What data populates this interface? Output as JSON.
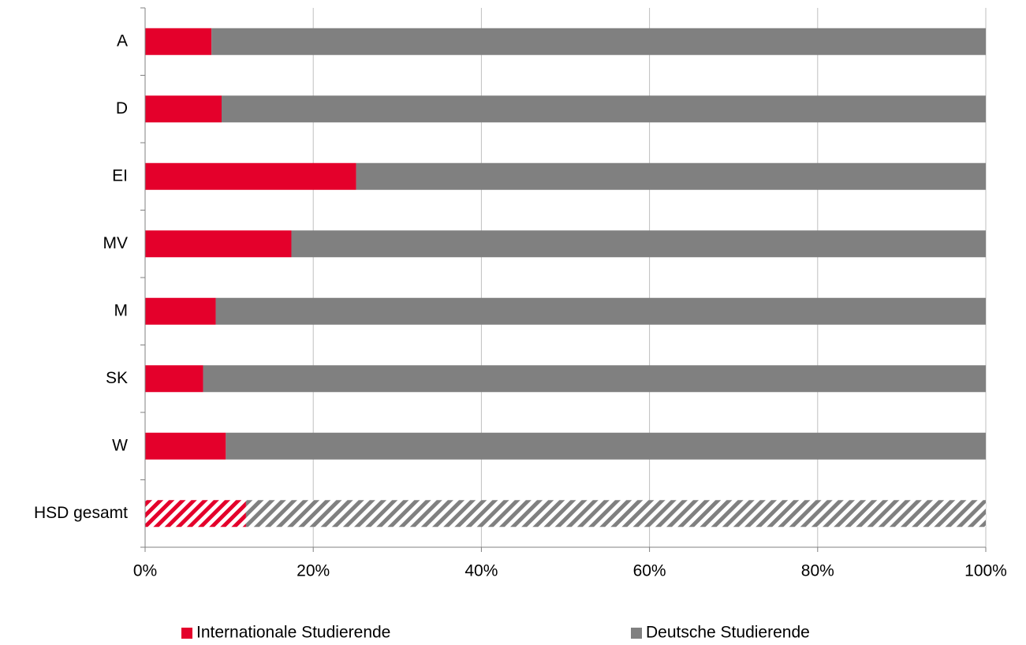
{
  "chart_data": {
    "type": "stacked_barh",
    "categories": [
      "A",
      "D",
      "EI",
      "MV",
      "M",
      "SK",
      "W",
      "HSD gesamt"
    ],
    "series": [
      {
        "name": "Internationale Studierende",
        "color": "#e4002b",
        "values": [
          7.9,
          9.1,
          25.1,
          17.4,
          8.4,
          6.9,
          9.6,
          12.0
        ]
      },
      {
        "name": "Deutsche Studierende",
        "color": "#808080",
        "values": [
          92.1,
          90.9,
          74.9,
          82.6,
          91.6,
          93.1,
          90.4,
          88.0
        ]
      }
    ],
    "hatched_categories": [
      "HSD gesamt"
    ],
    "xlim": [
      0,
      100
    ],
    "xticks": [
      {
        "value": 0,
        "label": "0%"
      },
      {
        "value": 20,
        "label": "20%"
      },
      {
        "value": 40,
        "label": "40%"
      },
      {
        "value": 60,
        "label": "60%"
      },
      {
        "value": 80,
        "label": "80%"
      },
      {
        "value": 100,
        "label": "100%"
      }
    ],
    "grid": true,
    "legend": "bottom"
  }
}
